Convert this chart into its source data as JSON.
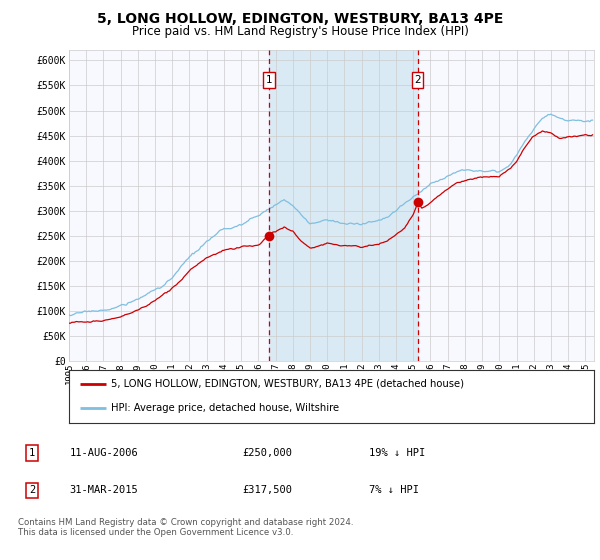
{
  "title": "5, LONG HOLLOW, EDINGTON, WESTBURY, BA13 4PE",
  "subtitle": "Price paid vs. HM Land Registry's House Price Index (HPI)",
  "title_fontsize": 10,
  "subtitle_fontsize": 8.5,
  "background_color": "#ffffff",
  "plot_bg_color": "#f8f8ff",
  "hpi_line_color": "#7fbfdf",
  "price_line_color": "#cc0000",
  "marker_color": "#cc0000",
  "shade_color": "#daeaf5",
  "dashed_color": "#cc0000",
  "ylim": [
    0,
    620000
  ],
  "yticks": [
    0,
    50000,
    100000,
    150000,
    200000,
    250000,
    300000,
    350000,
    400000,
    450000,
    500000,
    550000,
    600000
  ],
  "xlim_start": 1995.0,
  "xlim_end": 2025.5,
  "transaction1_date": 2006.6,
  "transaction1_price": 250000,
  "transaction1_label": "1",
  "transaction2_date": 2015.25,
  "transaction2_price": 317500,
  "transaction2_label": "2",
  "legend_line1": "5, LONG HOLLOW, EDINGTON, WESTBURY, BA13 4PE (detached house)",
  "legend_line2": "HPI: Average price, detached house, Wiltshire",
  "table_row1": [
    "1",
    "11-AUG-2006",
    "£250,000",
    "19% ↓ HPI"
  ],
  "table_row2": [
    "2",
    "31-MAR-2015",
    "£317,500",
    "7% ↓ HPI"
  ],
  "footer": "Contains HM Land Registry data © Crown copyright and database right 2024.\nThis data is licensed under the Open Government Licence v3.0.",
  "xtick_years": [
    1995,
    1996,
    1997,
    1998,
    1999,
    2000,
    2001,
    2002,
    2003,
    2004,
    2005,
    2006,
    2007,
    2008,
    2009,
    2010,
    2011,
    2012,
    2013,
    2014,
    2015,
    2016,
    2017,
    2018,
    2019,
    2020,
    2021,
    2022,
    2023,
    2024,
    2025
  ]
}
